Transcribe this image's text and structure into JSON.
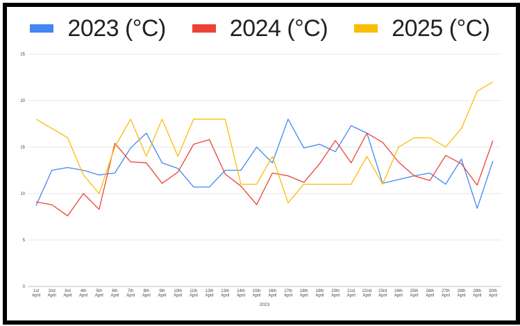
{
  "chart_data": {
    "type": "line",
    "title": "",
    "xlabel": "2023",
    "ylabel": "",
    "ylim": [
      0,
      25
    ],
    "yticks": [
      0,
      5,
      10,
      15,
      20,
      25
    ],
    "grid": true,
    "legend_position": "top",
    "categories": [
      "1st April",
      "2nd April",
      "3rd April",
      "4th April",
      "5th April",
      "6th April",
      "7th April",
      "8th April",
      "9th April",
      "10th April",
      "11th April",
      "12th April",
      "13th April",
      "14th April",
      "15th April",
      "16th April",
      "17th April",
      "18th April",
      "19th April",
      "20th April",
      "21st April",
      "22nd April",
      "23rd April",
      "24th April",
      "25th April",
      "26th April",
      "27th April",
      "28th April",
      "29th April",
      "30th April"
    ],
    "series": [
      {
        "name": "2023 (°C)",
        "color": "#4285F4",
        "values": [
          8.7,
          12.5,
          12.8,
          12.5,
          12.0,
          12.2,
          14.9,
          16.5,
          13.3,
          12.7,
          10.7,
          10.7,
          12.5,
          12.5,
          15.0,
          13.3,
          18.0,
          14.9,
          15.3,
          14.5,
          17.3,
          16.5,
          11.1,
          11.5,
          11.9,
          12.2,
          11.0,
          13.7,
          8.4,
          13.5
        ]
      },
      {
        "name": "2024 (°C)",
        "color": "#EA4335",
        "values": [
          9.1,
          8.8,
          7.6,
          10.0,
          8.3,
          15.4,
          13.4,
          13.3,
          11.1,
          12.3,
          15.3,
          15.8,
          12.1,
          10.8,
          8.8,
          12.2,
          11.9,
          11.2,
          13.2,
          15.7,
          13.3,
          16.5,
          15.5,
          13.4,
          11.9,
          11.4,
          14.1,
          13.2,
          10.9,
          15.7
        ]
      },
      {
        "name": "2025 (°C)",
        "color": "#FBBC04",
        "values": [
          18,
          17,
          16,
          12,
          10,
          15,
          18,
          14,
          18,
          14,
          18,
          18,
          18,
          11,
          11,
          14,
          9,
          11,
          11,
          11,
          11,
          14,
          11,
          15,
          16,
          16,
          15,
          17,
          21,
          22
        ]
      }
    ]
  },
  "legend": {
    "items": [
      {
        "label": "2023 (°C)",
        "color": "#4285F4"
      },
      {
        "label": "2024 (°C)",
        "color": "#EA4335"
      },
      {
        "label": "2025 (°C)",
        "color": "#FBBC04"
      }
    ]
  }
}
